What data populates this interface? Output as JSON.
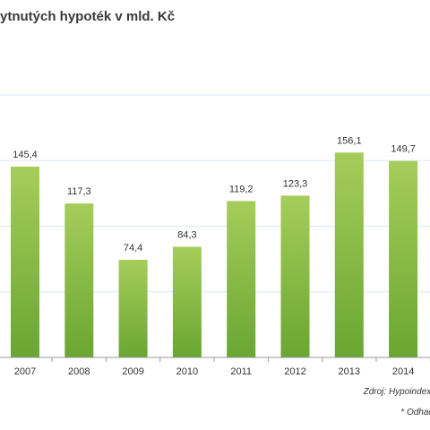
{
  "title": "ytnutých hypoték v mld. Kč",
  "source": "Zdroj: Hypoindex,",
  "footnote": "* Odhad",
  "colors": {
    "bar_top": "#a6cd5a",
    "bar_bottom": "#6aa632",
    "gridline": "#dbe9f4",
    "axis": "#9a9a9a",
    "label": "#333333"
  },
  "chart_data": {
    "type": "bar",
    "categories": [
      "2007",
      "2008",
      "2009",
      "2010",
      "2011",
      "2012",
      "2013",
      "2014"
    ],
    "values": [
      145.4,
      117.3,
      74.4,
      84.3,
      119.2,
      123.3,
      156.1,
      149.7
    ],
    "value_labels": [
      "145,4",
      "117,3",
      "74,4",
      "84,3",
      "119,2",
      "123,3",
      "156,1",
      "149,7"
    ],
    "title": "ytnutých hypoték v mld. Kč",
    "xlabel": "",
    "ylabel": "",
    "ylim": [
      0,
      200
    ],
    "grid": true,
    "legend": "none"
  }
}
